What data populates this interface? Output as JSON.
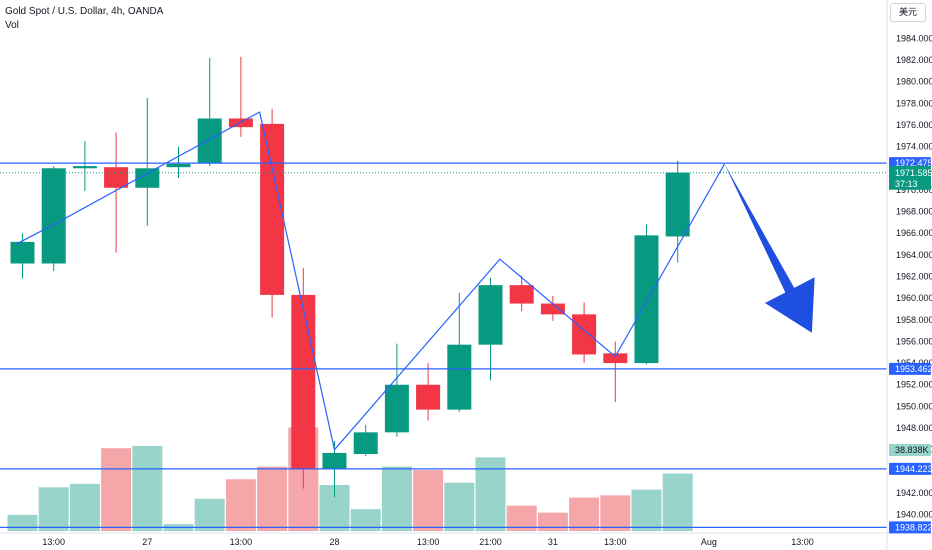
{
  "header": {
    "title": "Gold Spot / U.S. Dollar, 4h, OANDA",
    "sub": "Vol",
    "currency": "美元"
  },
  "chart_data": {
    "type": "candlestick",
    "title": "Gold Spot / U.S. Dollar, 4h, OANDA",
    "ylim": [
      1938.3,
      1985.7
    ],
    "price_ticks": [
      1940,
      1942,
      1944,
      1946,
      1948,
      1950,
      1952,
      1954,
      1956,
      1958,
      1960,
      1962,
      1964,
      1966,
      1968,
      1970,
      1972,
      1974,
      1976,
      1978,
      1980,
      1982,
      1984
    ],
    "time_ticks": [
      {
        "label": "13:00",
        "index": 1
      },
      {
        "label": "27",
        "index": 4
      },
      {
        "label": "13:00",
        "index": 7
      },
      {
        "label": "28",
        "index": 10
      },
      {
        "label": "13:00",
        "index": 13
      },
      {
        "label": "21:00",
        "index": 15
      },
      {
        "label": "31",
        "index": 17
      },
      {
        "label": "13:00",
        "index": 19
      },
      {
        "label": "Aug",
        "index": 22
      },
      {
        "label": "13:00",
        "index": 25
      }
    ],
    "candles": [
      {
        "o": 1963.2,
        "h": 1966.0,
        "l": 1961.8,
        "c": 1965.2,
        "v": 14
      },
      {
        "o": 1963.2,
        "h": 1972.2,
        "l": 1962.5,
        "c": 1972.0,
        "v": 38
      },
      {
        "o": 1972.0,
        "h": 1974.5,
        "l": 1969.9,
        "c": 1972.2,
        "v": 41
      },
      {
        "o": 1972.1,
        "h": 1975.3,
        "l": 1964.2,
        "c": 1970.2,
        "v": 72
      },
      {
        "o": 1970.2,
        "h": 1978.5,
        "l": 1966.7,
        "c": 1972.0,
        "v": 74
      },
      {
        "o": 1972.1,
        "h": 1974.0,
        "l": 1971.1,
        "c": 1972.4,
        "v": 6
      },
      {
        "o": 1972.5,
        "h": 1982.2,
        "l": 1972.2,
        "c": 1976.6,
        "v": 28
      },
      {
        "o": 1976.6,
        "h": 1982.3,
        "l": 1974.9,
        "c": 1975.8,
        "v": 45
      },
      {
        "o": 1976.1,
        "h": 1977.5,
        "l": 1958.2,
        "c": 1960.3,
        "v": 56
      },
      {
        "o": 1960.3,
        "h": 1962.8,
        "l": 1942.4,
        "c": 1944.2,
        "v": 90
      },
      {
        "o": 1944.2,
        "h": 1946.8,
        "l": 1941.6,
        "c": 1945.7,
        "v": 40
      },
      {
        "o": 1945.6,
        "h": 1948.3,
        "l": 1945.4,
        "c": 1947.6,
        "v": 19
      },
      {
        "o": 1947.6,
        "h": 1955.8,
        "l": 1947.2,
        "c": 1952.0,
        "v": 56
      },
      {
        "o": 1952.0,
        "h": 1954.0,
        "l": 1948.7,
        "c": 1949.7,
        "v": 53
      },
      {
        "o": 1949.7,
        "h": 1960.5,
        "l": 1949.5,
        "c": 1955.7,
        "v": 42
      },
      {
        "o": 1955.7,
        "h": 1961.9,
        "l": 1952.4,
        "c": 1961.2,
        "v": 64
      },
      {
        "o": 1961.2,
        "h": 1962.1,
        "l": 1958.8,
        "c": 1959.5,
        "v": 22
      },
      {
        "o": 1959.5,
        "h": 1960.2,
        "l": 1957.9,
        "c": 1958.5,
        "v": 16
      },
      {
        "o": 1958.5,
        "h": 1959.6,
        "l": 1954.0,
        "c": 1954.8,
        "v": 29
      },
      {
        "o": 1954.9,
        "h": 1956.0,
        "l": 1950.4,
        "c": 1954.0,
        "v": 31
      },
      {
        "o": 1954.0,
        "h": 1966.8,
        "l": 1953.9,
        "c": 1965.8,
        "v": 36
      },
      {
        "o": 1965.7,
        "h": 1972.7,
        "l": 1963.3,
        "c": 1971.6,
        "v": 50
      }
    ],
    "levels": [
      {
        "name": "level-1972",
        "price": 1972.475,
        "label": "1972.475"
      },
      {
        "name": "level-1953",
        "price": 1953.462,
        "label": "1953.462"
      },
      {
        "name": "level-1944",
        "price": 1944.223,
        "label": "1944.223"
      },
      {
        "name": "level-1938",
        "price": 1938.822,
        "label": "1938.822"
      }
    ],
    "current_price": {
      "price": 1971.585,
      "label": "1971.585",
      "countdown": "37:13"
    },
    "volume_label": "38.838K",
    "zigzag": [
      {
        "i": -0.2,
        "p": 1965.0
      },
      {
        "i": 1.0,
        "p": 1966.8
      },
      {
        "i": 7.6,
        "p": 1977.2
      },
      {
        "i": 10.0,
        "p": 1946.0
      },
      {
        "i": 15.3,
        "p": 1963.6
      },
      {
        "i": 19.0,
        "p": 1954.6
      },
      {
        "i": 22.5,
        "p": 1972.4
      }
    ],
    "arrow": {
      "from_i": 22.5,
      "from_p": 1972.4,
      "to_i": 25.3,
      "to_p": 1956.8
    },
    "colors": {
      "up": "#089981",
      "down": "#f23645",
      "vol_up": "#98d4ca",
      "vol_down": "#f5a6a9",
      "line": "#2962ff",
      "arrow": "#1e4fe0",
      "axis_label_bg": "#2962ff",
      "current_bg": "#089981"
    }
  }
}
